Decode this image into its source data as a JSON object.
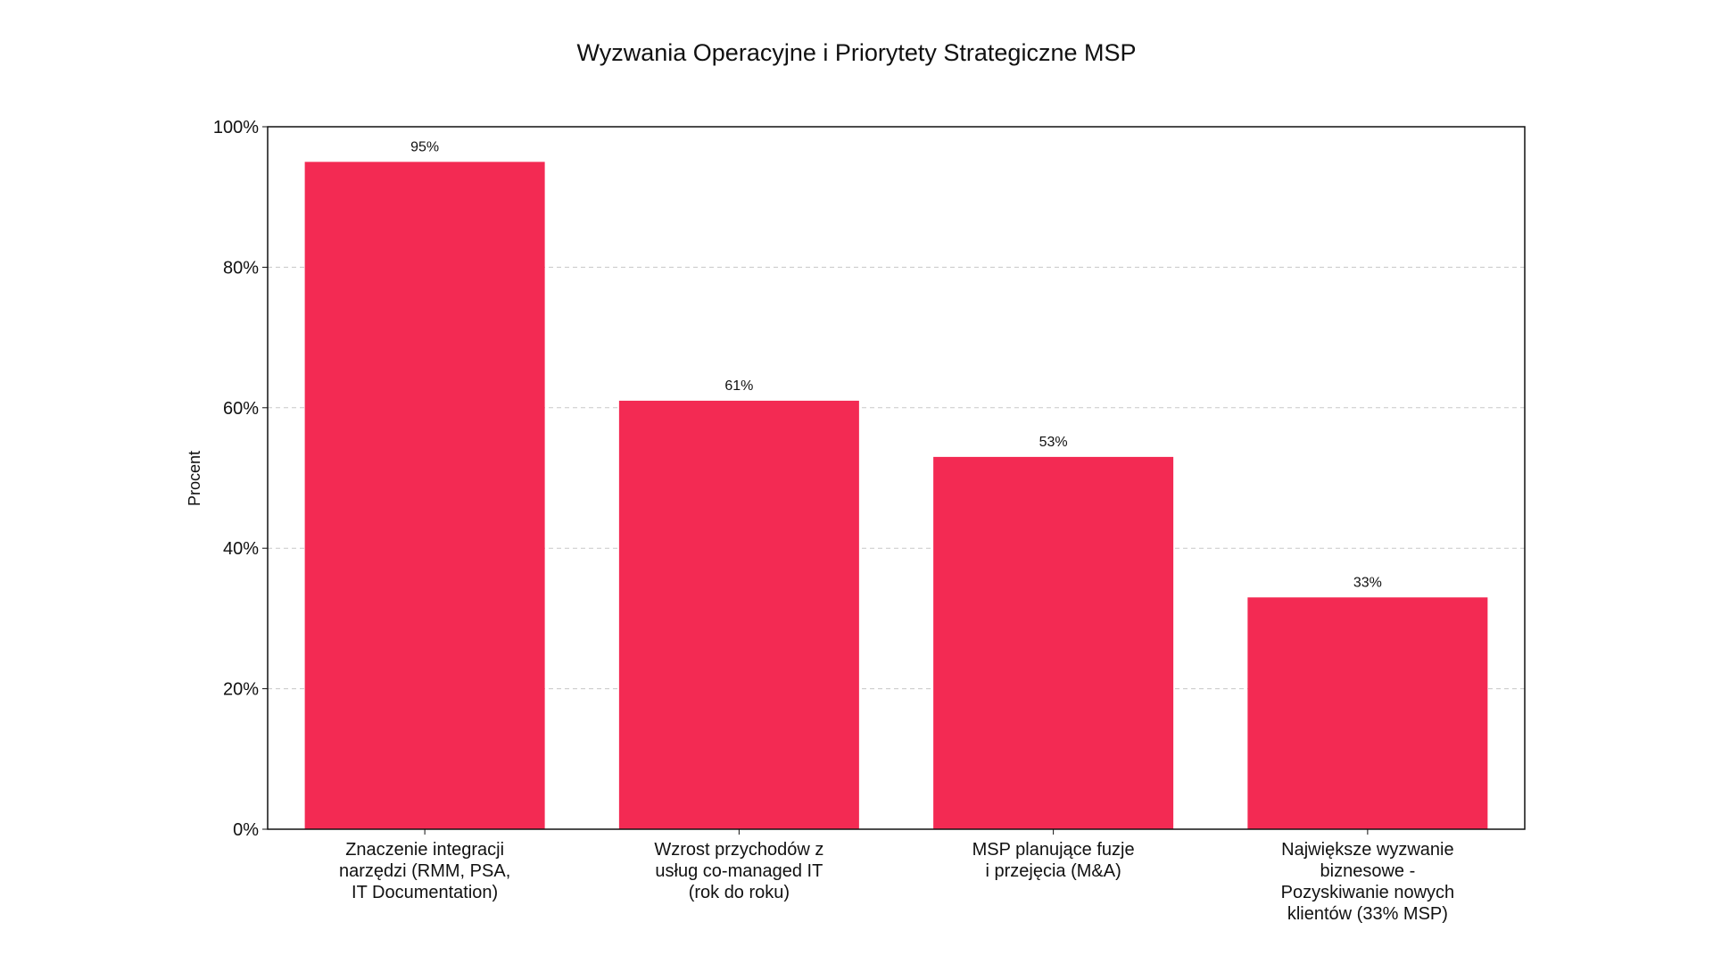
{
  "chart_data": {
    "type": "bar",
    "title": "Wyzwania Operacyjne i Priorytety Strategiczne MSP",
    "xlabel": "",
    "ylabel": "Procent",
    "ylim": [
      0,
      100
    ],
    "yticks": [
      0,
      20,
      40,
      60,
      80,
      100
    ],
    "ytick_labels": [
      "0%",
      "20%",
      "40%",
      "60%",
      "80%",
      "100%"
    ],
    "grid": "y-dashed",
    "categories": [
      [
        "Znaczenie integracji",
        "narzędzi (RMM, PSA,",
        "IT Documentation)"
      ],
      [
        "Wzrost przychodów z",
        "usług co-managed IT",
        "(rok do roku)"
      ],
      [
        "MSP planujące fuzje",
        "i przejęcia (M&A)"
      ],
      [
        "Największe wyzwanie",
        "biznesowe -",
        "Pozyskiwanie nowych",
        "klientów (33% MSP)"
      ]
    ],
    "values": [
      95,
      61,
      53,
      33
    ],
    "data_labels": [
      "95%",
      "61%",
      "53%",
      "33%"
    ],
    "bar_color": "#F32A53"
  }
}
